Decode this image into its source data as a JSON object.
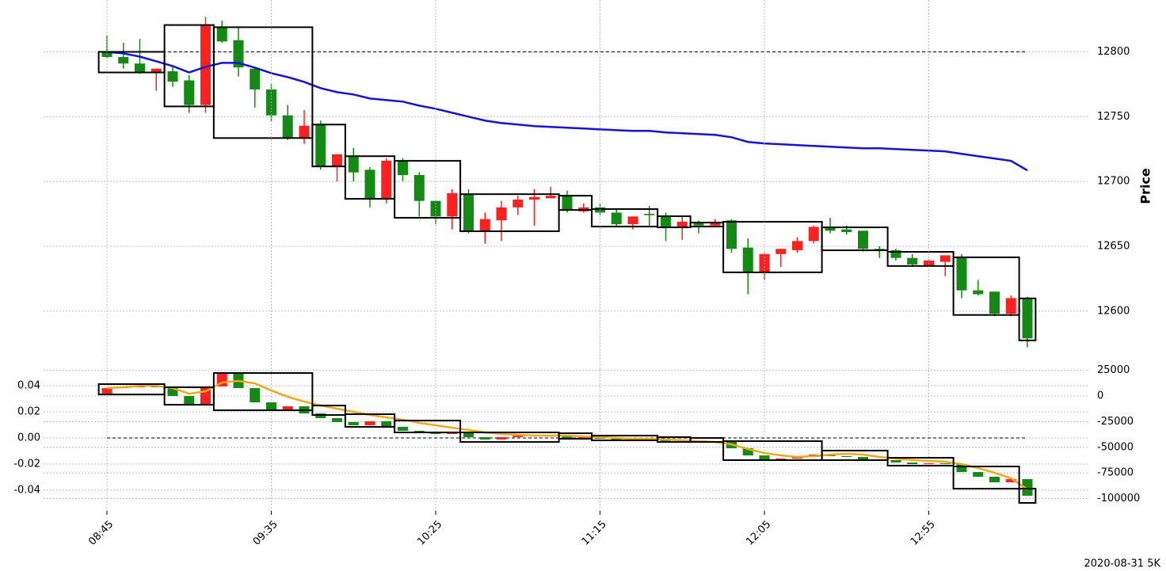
{
  "chart_data": [
    {
      "type": "candlestick",
      "ylabel": "Price",
      "y_axis_position": "right",
      "ylim": [
        12562,
        12840
      ],
      "yticks": [
        12600,
        12650,
        12700,
        12750,
        12800
      ],
      "grid": true,
      "up_color": "#ff2020",
      "down_color": "#138a13",
      "open": [
        12800,
        12796,
        12791,
        12784,
        12785,
        12778,
        12759,
        12819,
        12809,
        12787,
        12771,
        12751,
        12734,
        12744,
        12712,
        12720,
        12709,
        12687,
        12716,
        12705,
        12685,
        12673,
        12690,
        12662,
        12670,
        12680,
        12686,
        12687,
        12689,
        12677,
        12680,
        12676,
        12667,
        12675,
        12673,
        12665,
        12668,
        12666,
        12670,
        12649,
        12630,
        12644,
        12647,
        12654,
        12665,
        12663,
        12662,
        12648,
        12647,
        12641,
        12635,
        12638,
        12642,
        12616,
        12615,
        12598,
        12610
      ],
      "high": [
        12813,
        12807,
        12810,
        12787,
        12790,
        12782,
        12827,
        12824,
        12819,
        12788,
        12775,
        12759,
        12755,
        12747,
        12721,
        12726,
        12711,
        12718,
        12718,
        12707,
        12685,
        12694,
        12694,
        12676,
        12685,
        12689,
        12694,
        12696,
        12693,
        12683,
        12683,
        12679,
        12673,
        12681,
        12676,
        12673,
        12670,
        12671,
        12671,
        12656,
        12645,
        12648,
        12657,
        12666,
        12672,
        12666,
        12662,
        12650,
        12648,
        12644,
        12640,
        12643,
        12644,
        12624,
        12615,
        12612,
        12611
      ],
      "low": [
        12795,
        12787,
        12783,
        12770,
        12773,
        12753,
        12753,
        12807,
        12781,
        12757,
        12746,
        12732,
        12729,
        12709,
        12700,
        12700,
        12680,
        12683,
        12700,
        12673,
        12667,
        12663,
        12660,
        12652,
        12654,
        12674,
        12666,
        12687,
        12676,
        12676,
        12674,
        12665,
        12663,
        12666,
        12654,
        12655,
        12660,
        12665,
        12645,
        12613,
        12624,
        12634,
        12645,
        12652,
        12660,
        12659,
        12646,
        12641,
        12639,
        12634,
        12634,
        12627,
        12610,
        12612,
        12596,
        12596,
        12572
      ],
      "close": [
        12796,
        12791,
        12784,
        12787,
        12777,
        12759,
        12821,
        12808,
        12788,
        12771,
        12751,
        12734,
        12743,
        12712,
        12721,
        12707,
        12687,
        12716,
        12705,
        12685,
        12673,
        12691,
        12662,
        12671,
        12680,
        12686,
        12688,
        12689,
        12678,
        12680,
        12676,
        12667,
        12673,
        12674,
        12665,
        12669,
        12666,
        12668,
        12648,
        12630,
        12644,
        12648,
        12654,
        12665,
        12662,
        12661,
        12648,
        12647,
        12641,
        12636,
        12639,
        12643,
        12616,
        12613,
        12598,
        12610,
        12579
      ],
      "lines": [
        {
          "color": "#1414d2",
          "values": [
            12800,
            12798.8,
            12796.3,
            12792.7,
            12789,
            12784.1,
            12788.4,
            12791.5,
            12791.5,
            12787.8,
            12783.5,
            12780.5,
            12776.8,
            12772,
            12768.9,
            12767.1,
            12764,
            12762.8,
            12761.6,
            12758.5,
            12756.1,
            12753,
            12750,
            12747,
            12745.1,
            12743.9,
            12742.7,
            12742.1,
            12741.5,
            12740.9,
            12740.2,
            12739.6,
            12739,
            12739,
            12737.8,
            12737.2,
            12736.6,
            12736,
            12734.1,
            12730.5,
            12729.3,
            12728.7,
            12728,
            12727.4,
            12726.8,
            12726.2,
            12725.6,
            12725.6,
            12725,
            12724.4,
            12723.8,
            12723.2,
            12721.3,
            12719.5,
            12717.7,
            12715.9,
            12708.5
          ]
        }
      ],
      "boxes": {
        "start": [
          0,
          4,
          7,
          13,
          15,
          18,
          22,
          28,
          30,
          34,
          36,
          38,
          44,
          48,
          52,
          56
        ],
        "end": [
          3,
          6,
          12,
          14,
          17,
          21,
          27,
          29,
          33,
          35,
          37,
          43,
          47,
          51,
          55,
          56
        ],
        "top": [
          12800,
          12820.7,
          12819,
          12743.9,
          12719.5,
          12715.9,
          12690.2,
          12689,
          12678.7,
          12673.2,
          12668.3,
          12668.9,
          12664.6,
          12645.7,
          12641.5,
          12609.8
        ],
        "bottom": [
          12784.1,
          12757.9,
          12733.5,
          12711.6,
          12686.6,
          12672,
          12661.6,
          12678,
          12665.2,
          12664.6,
          12665.2,
          12629.9,
          12646.9,
          12634.8,
          12597,
          12577.4
        ]
      },
      "hline": 12800
    },
    {
      "type": "candlestick",
      "axis": "y2",
      "categories": [
        "08:45",
        null,
        null,
        null,
        null,
        null,
        null,
        null,
        null,
        null,
        "09:35",
        null,
        null,
        null,
        null,
        null,
        null,
        null,
        null,
        null,
        "10:25",
        null,
        null,
        null,
        null,
        null,
        null,
        null,
        null,
        null,
        "11:15",
        null,
        null,
        null,
        null,
        null,
        null,
        null,
        null,
        null,
        "12:05",
        null,
        null,
        null,
        null,
        null,
        null,
        null,
        null,
        null,
        "12:55",
        null,
        null,
        null,
        null,
        null,
        null
      ],
      "ylim": [
        -0.0558,
        0.0564
      ],
      "yticks": [
        -0.04,
        -0.02,
        {
          "value": 0,
          "label": "0.00"
        },
        0.02,
        0.04
      ],
      "y2lim": [
        -111900,
        30900
      ],
      "y2ticks": [
        -100000,
        -75000,
        -50000,
        -25000,
        0,
        25000
      ],
      "grid": true,
      "up_color": "#ff2020",
      "down_color": "#138a13",
      "open": [
        2300,
        7700,
        8500,
        9300,
        8500,
        0,
        -7700,
        9300,
        21600,
        7700,
        -6200,
        -13100,
        -10000,
        -17000,
        -21600,
        -25400,
        -28500,
        -24600,
        -30000,
        -33900,
        -36200,
        -37000,
        -35400,
        -40100,
        -42400,
        -40100,
        -38600,
        -39400,
        -38600,
        -40900,
        -40100,
        -41700,
        -42400,
        -41700,
        -42400,
        -44000,
        -43200,
        -44800,
        -44000,
        -50900,
        -57900,
        -61700,
        -61000,
        -59400,
        -57100,
        -58600,
        -59400,
        -61700,
        -62500,
        -64800,
        -66400,
        -65600,
        -66400,
        -74100,
        -78700,
        -84100,
        -81000
      ],
      "close": [
        7700,
        8500,
        9300,
        8500,
        0,
        -7700,
        9300,
        21600,
        7700,
        -6200,
        -13100,
        -10000,
        -17000,
        -21600,
        -25400,
        -28500,
        -24600,
        -30000,
        -33900,
        -36200,
        -37000,
        -35400,
        -40100,
        -42400,
        -40100,
        -38600,
        -39400,
        -38600,
        -40900,
        -40100,
        -41700,
        -42400,
        -41700,
        -42400,
        -44000,
        -43200,
        -44800,
        -44000,
        -50900,
        -57900,
        -61700,
        -61000,
        -59400,
        -57100,
        -58600,
        -59400,
        -61700,
        -62500,
        -64800,
        -66400,
        -65600,
        -66400,
        -74100,
        -78700,
        -84100,
        -81000,
        -97200
      ],
      "lines": [
        {
          "color": "#f0a818",
          "axis": "y2",
          "values": [
            7700,
            8500,
            10000,
            10000,
            7700,
            2300,
            4600,
            13100,
            14700,
            12300,
            5400,
            -800,
            -5400,
            -9300,
            -12300,
            -15400,
            -18500,
            -20800,
            -23100,
            -26200,
            -28500,
            -30900,
            -33200,
            -35500,
            -37000,
            -37800,
            -38600,
            -38600,
            -38600,
            -39400,
            -40100,
            -40900,
            -41700,
            -41700,
            -42400,
            -43200,
            -44000,
            -44800,
            -47100,
            -51700,
            -55600,
            -57900,
            -59400,
            -58600,
            -57100,
            -56300,
            -57100,
            -59400,
            -61000,
            -62500,
            -63300,
            -64000,
            -66400,
            -70200,
            -74800,
            -80200,
            -91000
          ]
        }
      ],
      "boxes": {
        "start": [
          0,
          4,
          7,
          13,
          15,
          18,
          22,
          28,
          30,
          34,
          36,
          38,
          44,
          48,
          52,
          56
        ],
        "end": [
          3,
          6,
          12,
          14,
          17,
          21,
          27,
          29,
          33,
          35,
          37,
          43,
          47,
          51,
          55,
          56
        ],
        "top": [
          11600,
          8500,
          22400,
          -9300,
          -17700,
          -23900,
          -35500,
          -36300,
          -38600,
          -40100,
          -40900,
          -44000,
          -53200,
          -60200,
          -68700,
          -90300
        ],
        "bottom": [
          1500,
          -8500,
          -13900,
          -18500,
          -30100,
          -35500,
          -44800,
          -41700,
          -43200,
          -44800,
          -44800,
          -62500,
          -62500,
          -67900,
          -90300,
          -104200
        ]
      },
      "hline": 0
    }
  ],
  "caption": "2020-08-31 5K"
}
